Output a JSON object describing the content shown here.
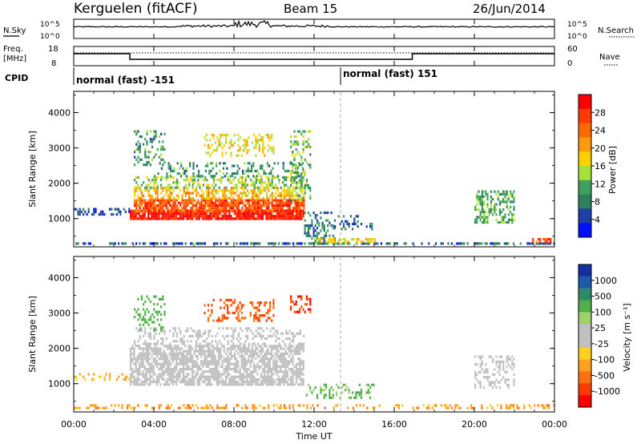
{
  "header": {
    "station": "Kerguelen (fitACF)",
    "beam": "Beam 15",
    "date": "26/Jun/2014"
  },
  "status_panels": {
    "nsky_label": "N.Sky",
    "nsearch_label": "N.Search",
    "count_ticks_left": [
      "10^5",
      "10^0"
    ],
    "count_ticks_right": [
      "10^5",
      "10^0"
    ],
    "freq_label": [
      "Freq.",
      "[MHz]"
    ],
    "freq_ticks": [
      "18",
      "8"
    ],
    "nave_label": "Nave",
    "nave_ticks": [
      "60",
      "0"
    ],
    "cpid_label": "CPID",
    "cpid_segments": [
      {
        "label": "normal (fast) -151",
        "start_hour": 0,
        "end_hour": 13.1
      },
      {
        "label": "normal (fast) 151",
        "start_hour": 13.1,
        "end_hour": 24
      }
    ]
  },
  "colorbars": {
    "power": {
      "title": "Power [dB]",
      "ticks": [
        "28",
        "24",
        "20",
        "16",
        "12",
        "8",
        "4"
      ],
      "colors": [
        "#ff0000",
        "#ff3a00",
        "#ff6a00",
        "#ff9a10",
        "#ffd000",
        "#a8e03a",
        "#40a060",
        "#2e7f5e",
        "#1f3fa8",
        "#0010ff"
      ]
    },
    "velocity": {
      "title": "Velocity [m s⁻¹]",
      "ticks": [
        "1000",
        "500",
        "100",
        "25",
        "-25",
        "-100",
        "-500",
        "-1000"
      ],
      "colors": [
        "#1430a0",
        "#1e5aa8",
        "#2f8a6a",
        "#4fb04a",
        "#9fd06a",
        "#c0c0c0",
        "#c0c0c0",
        "#ffd020",
        "#ffa020",
        "#ff7010",
        "#ff3a00",
        "#ff0000"
      ]
    }
  },
  "chart_data": [
    {
      "type": "heatmap",
      "name": "power",
      "ylabel": "Slant Range [km]",
      "xlabel": "Time UT",
      "xlim": [
        0,
        24
      ],
      "ylim": [
        200,
        4600
      ],
      "yticks": [
        "1000",
        "2000",
        "3000",
        "4000"
      ],
      "xticks": [
        "00:00",
        "04:00",
        "08:00",
        "12:00",
        "16:00",
        "20:00",
        "00:00"
      ],
      "colorbar": "Power [dB]",
      "regions": [
        {
          "t0": 0.0,
          "t1": 24.0,
          "r0": 280,
          "r1": 330,
          "value": 6,
          "density": 0.55
        },
        {
          "t0": 0.0,
          "t1": 2.8,
          "r0": 1150,
          "r1": 1300,
          "value": 5,
          "density": 0.35
        },
        {
          "t0": 2.8,
          "t1": 11.5,
          "r0": 1000,
          "r1": 1250,
          "value": 28,
          "density": 0.9
        },
        {
          "t0": 3.0,
          "t1": 11.5,
          "r0": 1250,
          "r1": 1550,
          "value": 24,
          "density": 0.85
        },
        {
          "t0": 3.0,
          "t1": 11.5,
          "r0": 1550,
          "r1": 1900,
          "value": 18,
          "density": 0.55
        },
        {
          "t0": 3.0,
          "t1": 11.5,
          "r0": 1900,
          "r1": 2200,
          "value": 13,
          "density": 0.4
        },
        {
          "t0": 4.0,
          "t1": 11.5,
          "r0": 2200,
          "r1": 2600,
          "value": 9,
          "density": 0.25
        },
        {
          "t0": 3.0,
          "t1": 4.5,
          "r0": 2500,
          "r1": 3500,
          "value": 9,
          "density": 0.3
        },
        {
          "t0": 6.5,
          "t1": 10.0,
          "r0": 2800,
          "r1": 3400,
          "value": 16,
          "density": 0.3
        },
        {
          "t0": 10.8,
          "t1": 11.8,
          "r0": 1500,
          "r1": 3500,
          "value": 12,
          "density": 0.35
        },
        {
          "t0": 11.5,
          "t1": 13.0,
          "r0": 300,
          "r1": 1200,
          "value": 8,
          "density": 0.3
        },
        {
          "t0": 13.0,
          "t1": 15.0,
          "r0": 700,
          "r1": 1100,
          "value": 6,
          "density": 0.25
        },
        {
          "t0": 12.0,
          "t1": 15.0,
          "r0": 350,
          "r1": 450,
          "value": 16,
          "density": 0.6
        },
        {
          "t0": 20.0,
          "t1": 22.0,
          "r0": 900,
          "r1": 1800,
          "value": 11,
          "density": 0.45
        },
        {
          "t0": 22.8,
          "t1": 23.8,
          "r0": 350,
          "r1": 450,
          "value": 24,
          "density": 0.6
        }
      ]
    },
    {
      "type": "heatmap",
      "name": "velocity",
      "ylabel": "Slant Range [km]",
      "xlabel": "Time UT",
      "xlim": [
        0,
        24
      ],
      "ylim": [
        200,
        4600
      ],
      "yticks": [
        "1000",
        "2000",
        "3000",
        "4000"
      ],
      "xticks": [
        "00:00",
        "04:00",
        "08:00",
        "12:00",
        "16:00",
        "20:00",
        "00:00"
      ],
      "colorbar": "Velocity [m s⁻¹]",
      "regions": [
        {
          "t0": 0.0,
          "t1": 24.0,
          "r0": 280,
          "r1": 420,
          "value": -80,
          "density": 0.35
        },
        {
          "t0": 0.0,
          "t1": 2.8,
          "r0": 1150,
          "r1": 1300,
          "value": -60,
          "density": 0.3
        },
        {
          "t0": 2.8,
          "t1": 11.5,
          "r0": 1000,
          "r1": 2100,
          "value": 0,
          "density": 0.7
        },
        {
          "t0": 3.0,
          "t1": 11.5,
          "r0": 2100,
          "r1": 2600,
          "value": 0,
          "density": 0.3
        },
        {
          "t0": 3.0,
          "t1": 4.5,
          "r0": 2500,
          "r1": 3500,
          "value": 200,
          "density": 0.25
        },
        {
          "t0": 6.5,
          "t1": 10.0,
          "r0": 2800,
          "r1": 3400,
          "value": -300,
          "density": 0.3
        },
        {
          "t0": 10.8,
          "t1": 11.8,
          "r0": 3000,
          "r1": 3500,
          "value": -400,
          "density": 0.4
        },
        {
          "t0": 11.5,
          "t1": 15.0,
          "r0": 600,
          "r1": 1000,
          "value": 120,
          "density": 0.3
        },
        {
          "t0": 20.0,
          "t1": 22.0,
          "r0": 900,
          "r1": 1800,
          "value": 0,
          "density": 0.4
        }
      ]
    }
  ]
}
